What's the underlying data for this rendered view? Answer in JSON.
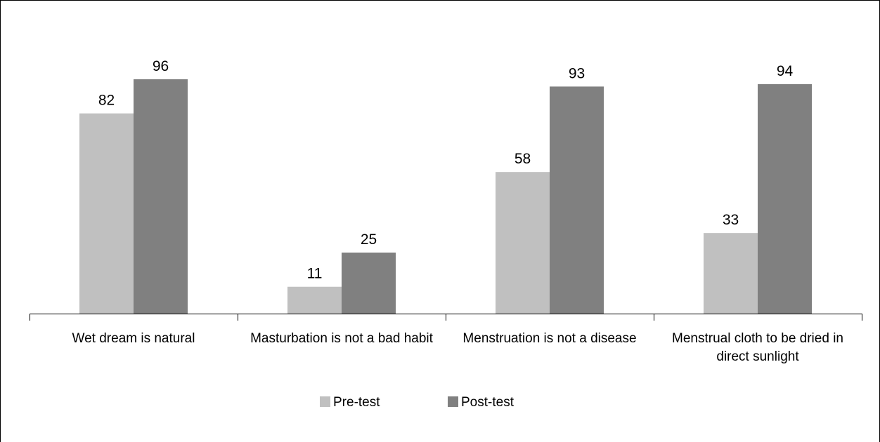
{
  "chart_data": {
    "type": "bar",
    "categories": [
      "Wet dream is natural",
      "Masturbation is not a bad habit",
      "Menstruation is not a disease",
      "Menstrual cloth to be dried in direct sunlight"
    ],
    "series": [
      {
        "name": "Pre-test",
        "color": "#c0c0c0",
        "values": [
          82,
          11,
          58,
          33
        ]
      },
      {
        "name": "Post-test",
        "color": "#808080",
        "values": [
          96,
          25,
          93,
          94
        ]
      }
    ],
    "legend": "bottom"
  }
}
